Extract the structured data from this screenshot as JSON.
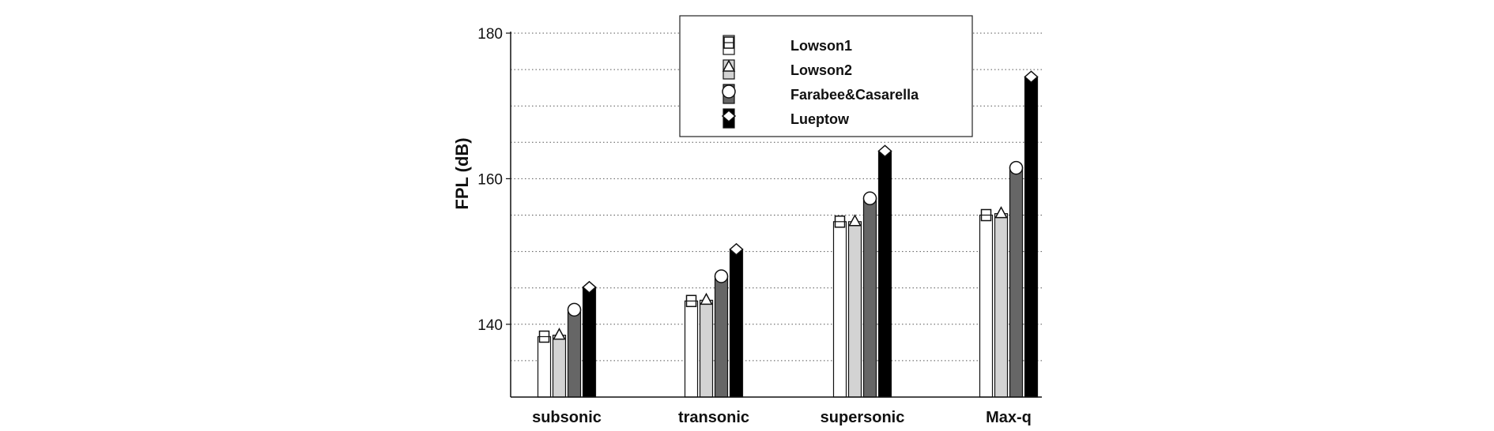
{
  "chart_data": {
    "type": "bar",
    "title": "",
    "xlabel": "",
    "ylabel": "FPL (dB)",
    "categories": [
      "subsonic",
      "transonic",
      "supersonic",
      "Max-q"
    ],
    "ylim": [
      130,
      180
    ],
    "yticks": [
      140,
      160,
      180
    ],
    "minor_grid_step": 5,
    "grid": "horizontal dotted",
    "legend_position": "top-center",
    "series": [
      {
        "name": "Lowson1",
        "values": [
          138.3,
          143.2,
          154.1,
          155.0
        ],
        "color": "#ffffff",
        "marker": "square"
      },
      {
        "name": "Lowson2",
        "values": [
          138.5,
          143.3,
          154.1,
          155.2
        ],
        "color": "#d3d3d3",
        "marker": "triangle"
      },
      {
        "name": "Farabee&Casarella",
        "values": [
          142.0,
          146.6,
          157.3,
          161.5
        ],
        "color": "#666666",
        "marker": "circle"
      },
      {
        "name": "Lueptow",
        "values": [
          145.1,
          150.3,
          163.8,
          174.0
        ],
        "color": "#000000",
        "marker": "diamond"
      }
    ]
  }
}
